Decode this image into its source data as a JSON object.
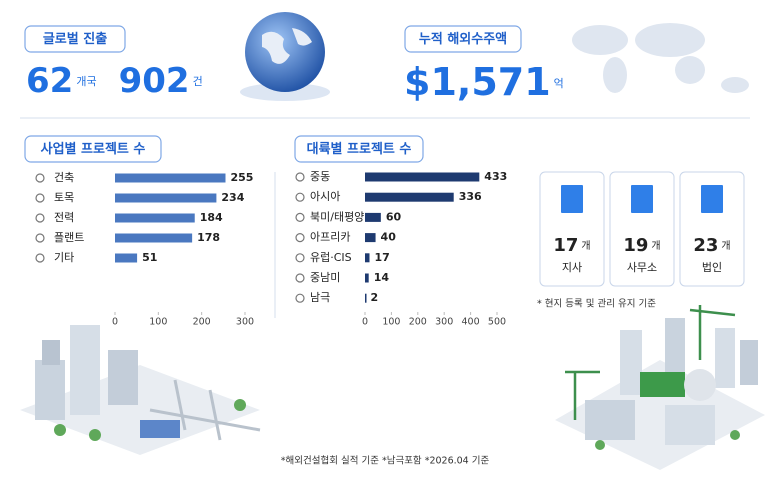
{
  "global": {
    "label": "글로벌 진출",
    "countries": 62,
    "countries_unit": "개국",
    "projects": 902,
    "projects_unit": "건"
  },
  "orders": {
    "label": "누적 해외수주액",
    "amount": "$1,571",
    "unit": "억"
  },
  "chart_data": [
    {
      "type": "bar",
      "title": "사업별 프로젝트 수",
      "categories": [
        "건축",
        "토목",
        "전력",
        "플랜트",
        "기타"
      ],
      "values": [
        255,
        234,
        184,
        178,
        51
      ],
      "color": "#4a78c0",
      "xlim": [
        0,
        300
      ],
      "xticks": [
        0,
        100,
        200,
        300
      ]
    },
    {
      "type": "bar",
      "title": "대륙별 프로젝트 수",
      "categories": [
        "중동",
        "아시아",
        "북미/태평양",
        "아프리카",
        "유럽·CIS",
        "중남미",
        "남극"
      ],
      "values": [
        433,
        336,
        60,
        40,
        17,
        14,
        2
      ],
      "color": "#1e3a70",
      "xlim": [
        0,
        500
      ],
      "xticks": [
        0,
        100,
        200,
        300,
        400,
        500
      ]
    }
  ],
  "offices": [
    {
      "count": 17,
      "unit": "개",
      "label": "지사"
    },
    {
      "count": 19,
      "unit": "개",
      "label": "사무소"
    },
    {
      "count": 23,
      "unit": "개",
      "label": "법인"
    }
  ],
  "office_note": "* 현지 등록 및 관리 유지 기준",
  "footnote": "*해외건설협회 실적 기준 *남극포함 *2026.04 기준"
}
